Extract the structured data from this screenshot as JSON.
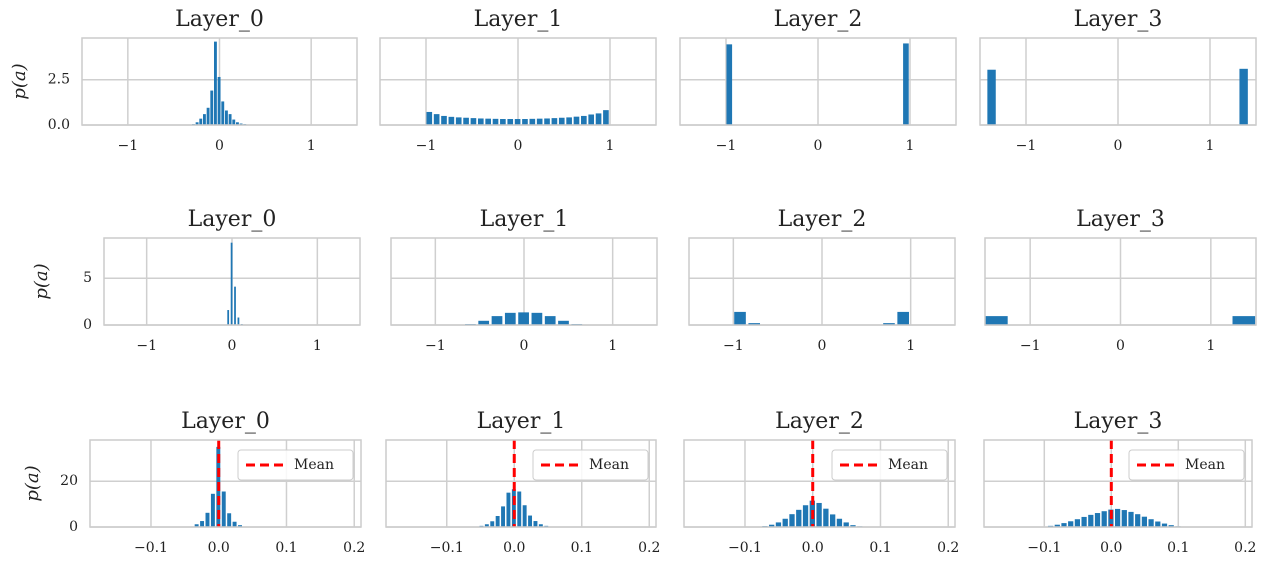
{
  "chart_data": [
    {
      "row": 1,
      "type": "bar",
      "ylabel": "p(a)",
      "y_ticks": [
        "0.0",
        "2.5"
      ],
      "y_tick_values": [
        0,
        2.5
      ],
      "grid": true,
      "panels": [
        {
          "title": "Layer_0",
          "xlim": [
            -1.5,
            1.5
          ],
          "ylim": [
            0,
            4.8
          ],
          "x_ticks": [
            "−1",
            "0",
            "1"
          ],
          "x_tick_values": [
            -1,
            0,
            1
          ],
          "bar_width": 0.04,
          "x": [
            -0.28,
            -0.24,
            -0.2,
            -0.16,
            -0.12,
            -0.08,
            -0.04,
            0.0,
            0.04,
            0.08,
            0.12,
            0.16,
            0.2,
            0.24,
            0.28,
            0.32
          ],
          "values": [
            0.05,
            0.15,
            0.35,
            0.6,
            0.95,
            1.9,
            4.6,
            2.65,
            1.3,
            0.8,
            0.6,
            0.3,
            0.15,
            0.08,
            0.05,
            0.02
          ]
        },
        {
          "title": "Layer_1",
          "xlim": [
            -1.5,
            1.5
          ],
          "ylim": [
            0,
            4.8
          ],
          "x_ticks": [
            "−1",
            "0",
            "1"
          ],
          "x_tick_values": [
            -1,
            0,
            1
          ],
          "bar_width": 0.07,
          "x": [
            -0.96,
            -0.88,
            -0.8,
            -0.72,
            -0.64,
            -0.56,
            -0.48,
            -0.4,
            -0.32,
            -0.24,
            -0.16,
            -0.08,
            0.0,
            0.08,
            0.16,
            0.24,
            0.32,
            0.4,
            0.48,
            0.56,
            0.64,
            0.72,
            0.8,
            0.88,
            0.96
          ],
          "values": [
            0.72,
            0.6,
            0.5,
            0.45,
            0.42,
            0.4,
            0.38,
            0.36,
            0.35,
            0.34,
            0.33,
            0.33,
            0.33,
            0.33,
            0.34,
            0.35,
            0.36,
            0.38,
            0.4,
            0.42,
            0.46,
            0.5,
            0.58,
            0.64,
            0.82
          ]
        },
        {
          "title": "Layer_2",
          "xlim": [
            -1.5,
            1.5
          ],
          "ylim": [
            0,
            4.8
          ],
          "x_ticks": [
            "−1",
            "0",
            "1"
          ],
          "x_tick_values": [
            -1,
            0,
            1
          ],
          "bar_width": 0.07,
          "x": [
            -0.96,
            0.96
          ],
          "values": [
            4.45,
            4.5
          ]
        },
        {
          "title": "Layer_3",
          "xlim": [
            -1.5,
            1.5
          ],
          "ylim": [
            0,
            4.8
          ],
          "x_ticks": [
            "−1",
            "0",
            "1"
          ],
          "x_tick_values": [
            -1,
            0,
            1
          ],
          "bar_width": 0.1,
          "x": [
            -1.37,
            1.37
          ],
          "values": [
            3.05,
            3.1
          ]
        }
      ]
    },
    {
      "row": 2,
      "type": "bar",
      "ylabel": "p(a)",
      "y_ticks": [
        "0",
        "5"
      ],
      "y_tick_values": [
        0,
        5
      ],
      "grid": true,
      "panels": [
        {
          "title": "Layer_0",
          "xlim": [
            -1.5,
            1.5
          ],
          "ylim": [
            0,
            9.3
          ],
          "x_ticks": [
            "−1",
            "0",
            "1"
          ],
          "x_tick_values": [
            -1,
            0,
            1
          ],
          "bar_width": 0.03,
          "x": [
            -0.04,
            0.0,
            0.04,
            0.08,
            0.12
          ],
          "values": [
            1.6,
            8.8,
            4.1,
            0.8,
            0.1
          ]
        },
        {
          "title": "Layer_1",
          "xlim": [
            -1.5,
            1.5
          ],
          "ylim": [
            0,
            9.3
          ],
          "x_ticks": [
            "−1",
            "0",
            "1"
          ],
          "x_tick_values": [
            -1,
            0,
            1
          ],
          "bar_width": 0.13,
          "x": [
            -0.6,
            -0.45,
            -0.3,
            -0.15,
            0.0,
            0.15,
            0.3,
            0.45,
            0.6
          ],
          "values": [
            0.1,
            0.45,
            0.95,
            1.3,
            1.35,
            1.3,
            0.95,
            0.45,
            0.1
          ]
        },
        {
          "title": "Layer_2",
          "xlim": [
            -1.5,
            1.5
          ],
          "ylim": [
            0,
            9.3
          ],
          "x_ticks": [
            "−1",
            "0",
            "1"
          ],
          "x_tick_values": [
            -1,
            0,
            1
          ],
          "bar_width": 0.14,
          "x": [
            -0.92,
            -0.76,
            0.76,
            0.92
          ],
          "values": [
            1.4,
            0.2,
            0.2,
            1.4
          ]
        },
        {
          "title": "Layer_3",
          "xlim": [
            -1.5,
            1.5
          ],
          "ylim": [
            0,
            9.3
          ],
          "x_ticks": [
            "−1",
            "0",
            "1"
          ],
          "x_tick_values": [
            -1,
            0,
            1
          ],
          "bar_width": 0.26,
          "x": [
            -1.37,
            1.37
          ],
          "values": [
            0.95,
            0.95
          ]
        }
      ]
    },
    {
      "row": 3,
      "type": "bar",
      "ylabel": "p(a)",
      "y_ticks": [
        "0",
        "20"
      ],
      "y_tick_values": [
        0,
        20
      ],
      "grid": true,
      "legend": {
        "label": "Mean",
        "placement": "top-right",
        "color": "#ff0000",
        "style": "dashed"
      },
      "panels": [
        {
          "title": "Layer_0",
          "xlim": [
            -0.19,
            0.21
          ],
          "ylim": [
            0,
            38
          ],
          "x_ticks": [
            "−0.1",
            "0.0",
            "0.1",
            "0.2"
          ],
          "x_tick_values": [
            -0.1,
            0,
            0.1,
            0.2
          ],
          "bar_width": 0.007,
          "mean": 0.0,
          "x": [
            -0.032,
            -0.024,
            -0.016,
            -0.008,
            0.0,
            0.008,
            0.016,
            0.024,
            0.032
          ],
          "values": [
            1.2,
            2.6,
            6.2,
            14.5,
            35.0,
            15.5,
            6.0,
            2.3,
            0.8
          ]
        },
        {
          "title": "Layer_1",
          "xlim": [
            -0.19,
            0.21
          ],
          "ylim": [
            0,
            38
          ],
          "x_ticks": [
            "−0.1",
            "0.0",
            "0.1",
            "0.2"
          ],
          "x_tick_values": [
            -0.1,
            0,
            0.1,
            0.2
          ],
          "bar_width": 0.007,
          "mean": 0.0,
          "x": [
            -0.048,
            -0.04,
            -0.032,
            -0.024,
            -0.016,
            -0.008,
            0.0,
            0.008,
            0.016,
            0.024,
            0.032,
            0.04,
            0.048
          ],
          "values": [
            0.5,
            1.2,
            2.5,
            4.8,
            9.0,
            15.0,
            16.5,
            15.5,
            9.5,
            5.0,
            2.6,
            1.2,
            0.5
          ]
        },
        {
          "title": "Layer_2",
          "xlim": [
            -0.19,
            0.21
          ],
          "ylim": [
            0,
            38
          ],
          "x_ticks": [
            "−0.1",
            "0.0",
            "0.1",
            "0.2"
          ],
          "x_tick_values": [
            -0.1,
            0,
            0.1,
            0.2
          ],
          "bar_width": 0.009,
          "mean": 0.0,
          "x": [
            -0.07,
            -0.06,
            -0.05,
            -0.04,
            -0.03,
            -0.02,
            -0.01,
            0.0,
            0.01,
            0.02,
            0.03,
            0.04,
            0.05,
            0.06,
            0.07
          ],
          "values": [
            0.4,
            1.0,
            2.0,
            3.6,
            5.6,
            7.5,
            9.5,
            11.5,
            10.5,
            8.0,
            5.5,
            3.6,
            2.0,
            0.8,
            0.3
          ]
        },
        {
          "title": "Layer_3",
          "xlim": [
            -0.19,
            0.21
          ],
          "ylim": [
            0,
            38
          ],
          "x_ticks": [
            "−0.1",
            "0.0",
            "0.1",
            "0.2"
          ],
          "x_tick_values": [
            -0.1,
            0,
            0.1,
            0.2
          ],
          "bar_width": 0.009,
          "mean": 0.0,
          "x": [
            -0.1,
            -0.09,
            -0.08,
            -0.07,
            -0.06,
            -0.05,
            -0.04,
            -0.03,
            -0.02,
            -0.01,
            0.0,
            0.01,
            0.02,
            0.03,
            0.04,
            0.05,
            0.06,
            0.07,
            0.08,
            0.09,
            0.1
          ],
          "values": [
            0.2,
            0.5,
            1.0,
            1.7,
            2.5,
            3.4,
            4.4,
            5.3,
            6.1,
            6.9,
            7.6,
            7.9,
            7.4,
            6.6,
            5.6,
            4.5,
            3.4,
            2.4,
            1.5,
            0.8,
            0.3
          ]
        }
      ]
    }
  ],
  "colors": {
    "bar": "#1f77b4",
    "mean_line": "#ff0000",
    "grid": "#cfcfcf",
    "frame": "#cccccc",
    "text": "#222222"
  }
}
